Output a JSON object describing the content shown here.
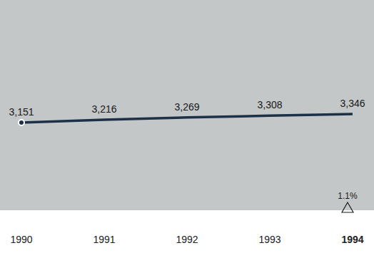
{
  "chart_data": {
    "type": "line",
    "categories": [
      "1990",
      "1991",
      "1992",
      "1993",
      "1994"
    ],
    "values": [
      3151,
      3216,
      3269,
      3308,
      3346
    ],
    "value_labels": [
      "3,151",
      "3,216",
      "3,269",
      "3,308",
      "3,346"
    ],
    "data_labels": true,
    "tick_labels": "x",
    "ylim": [
      1150,
      5950
    ],
    "color": "#1c3048",
    "annotation": "1.1%"
  }
}
